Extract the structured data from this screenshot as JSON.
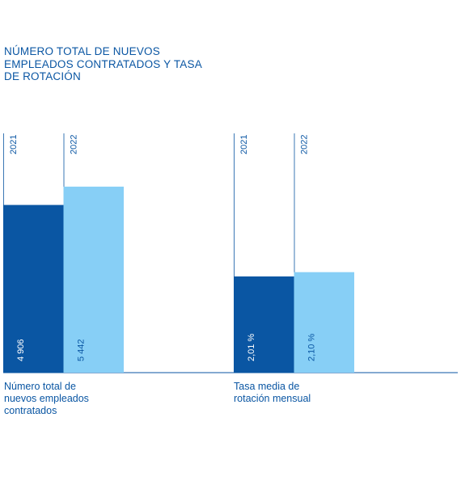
{
  "title_lines": [
    "NÚMERO TOTAL DE NUEVOS",
    "EMPLEADOS CONTRATADOS Y TASA",
    "DE ROTACIÓN"
  ],
  "colors": {
    "year_2021": "#0a56a3",
    "year_2022": "#87cff6",
    "text": "#0a56a3",
    "axis": "#0a56a3"
  },
  "chart_data": [
    {
      "type": "bar",
      "group_label_lines": [
        "Número total de",
        "nuevos empleados",
        "contratados"
      ],
      "categories": [
        "2021",
        "2022"
      ],
      "values": [
        4906,
        5442
      ],
      "value_labels": [
        "4 906",
        "5 442"
      ],
      "ylim": [
        0,
        7000
      ]
    },
    {
      "type": "bar",
      "group_label_lines": [
        "Tasa media de",
        "rotación mensual"
      ],
      "categories": [
        "2021",
        "2022"
      ],
      "values": [
        2.01,
        2.1
      ],
      "value_labels": [
        "2,01 %",
        "2,10 %"
      ],
      "ylim": [
        0,
        5
      ]
    }
  ]
}
